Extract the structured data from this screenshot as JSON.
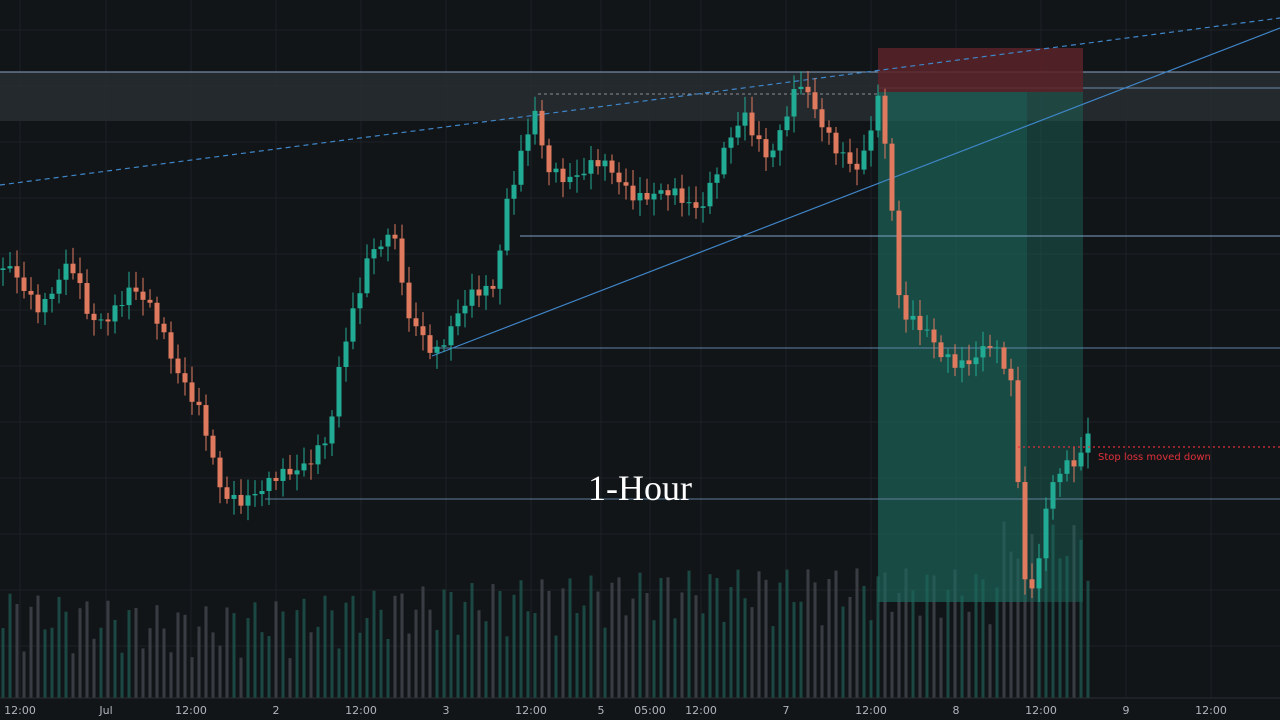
{
  "overlay_title": "1-Hour",
  "annotation": "Stop loss moved down",
  "x_axis": {
    "labels": [
      "12:00",
      "Jul",
      "12:00",
      "2",
      "12:00",
      "3",
      "12:00",
      "5",
      "05:00",
      "12:00",
      "7",
      "12:00",
      "8",
      "12:00",
      "9",
      "12:00"
    ]
  }
}
